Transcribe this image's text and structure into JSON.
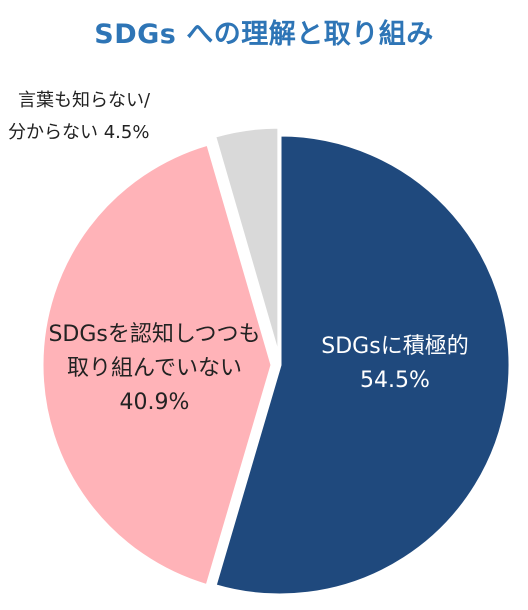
{
  "title": "SDGs への理解と取り組み",
  "chart_data": {
    "type": "pie",
    "title": "SDGs への理解と取り組み",
    "slices": [
      {
        "label_line1": "SDGsに積極的",
        "label_line2": "",
        "value": 54.5,
        "value_text": "54.5%",
        "color": "#1f497d",
        "exploded": false
      },
      {
        "label_line1": "SDGsを認知しつつも",
        "label_line2": "取り組んでいない",
        "value": 40.9,
        "value_text": "40.9%",
        "color": "#ffb3b8",
        "exploded": true
      },
      {
        "label_line1": "言葉も知らない/",
        "label_line2": "分からない",
        "value": 4.5,
        "value_text": "4.5%",
        "color": "#d9d9d9",
        "exploded": true
      }
    ]
  }
}
